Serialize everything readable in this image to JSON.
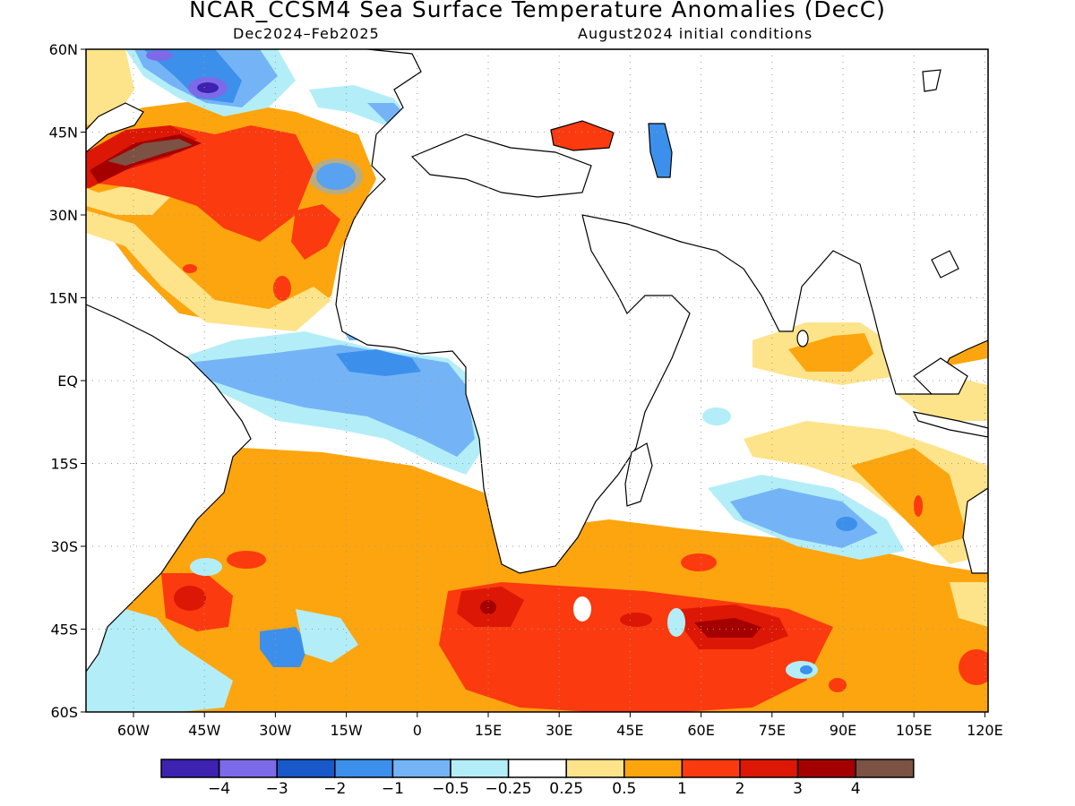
{
  "map": {
    "title": "NCAR_CCSM4 Sea Surface Temperature Anomalies (DecC)",
    "period": "Dec2024–Feb2025",
    "initial_conditions": "August2024 initial conditions",
    "lat_labels": [
      "60N",
      "45N",
      "30N",
      "15N",
      "EQ",
      "15S",
      "30S",
      "45S",
      "60S"
    ],
    "lon_labels": [
      "60W",
      "45W",
      "30W",
      "15W",
      "0",
      "15E",
      "30E",
      "45E",
      "60E",
      "75E",
      "90E",
      "105E",
      "120E"
    ],
    "colorbar": {
      "colors": [
        "#3d22b1",
        "#7d6ae8",
        "#1858c9",
        "#3c90ec",
        "#74b4f6",
        "#b3eef8",
        "#ffffff",
        "#fde48a",
        "#fda50e",
        "#fb3a0f",
        "#dd1705",
        "#a50000",
        "#7b5244"
      ],
      "tick_labels": [
        "−4",
        "−3",
        "−2",
        "−1",
        "−0.5",
        "−0.25",
        "0.25",
        "0.5",
        "1",
        "2",
        "3",
        "4"
      ]
    },
    "land_color": "#ffffff",
    "grid": "dotted"
  }
}
